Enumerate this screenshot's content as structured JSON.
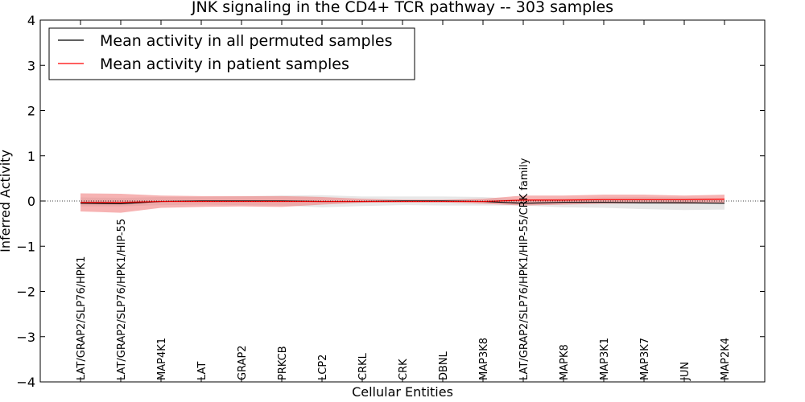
{
  "chart_data": {
    "type": "line",
    "title": "JNK signaling in the CD4+ TCR pathway -- 303 samples",
    "xlabel": "Cellular Entities",
    "ylabel": "Inferred Activity",
    "ylim": [
      -4,
      4
    ],
    "yticks": [
      -4,
      -3,
      -2,
      -1,
      0,
      1,
      2,
      3,
      4
    ],
    "ytick_labels": [
      "−4",
      "−3",
      "−2",
      "−1",
      "0",
      "1",
      "2",
      "3",
      "4"
    ],
    "legend_position": "upper-left",
    "categories": [
      "LAT/GRAP2/SLP76/HPK1",
      "LAT/GRAP2/SLP76/HPK1/HIP-55",
      "MAP4K1",
      "LAT",
      "GRAP2",
      "PRKCB",
      "LCP2",
      "CRKL",
      "CRK",
      "DBNL",
      "MAP3K8",
      "LAT/GRAP2/SLP76/HPK1/HIP-55/CRK family",
      "MAPK8",
      "MAP3K1",
      "MAP3K7",
      "JUN",
      "MAP2K4"
    ],
    "series": [
      {
        "name": "Mean activity in all permuted samples",
        "color": "#000000",
        "band_color": "#bbbbbb",
        "values": [
          -0.05,
          -0.06,
          -0.01,
          0.0,
          0.0,
          0.0,
          -0.01,
          -0.01,
          0.0,
          0.0,
          -0.01,
          -0.05,
          -0.03,
          -0.03,
          -0.04,
          -0.04,
          -0.05
        ],
        "lower": [
          -0.12,
          -0.12,
          -0.09,
          -0.08,
          -0.09,
          -0.1,
          -0.14,
          -0.11,
          -0.09,
          -0.1,
          -0.1,
          -0.1,
          -0.14,
          -0.15,
          -0.18,
          -0.2,
          -0.19
        ],
        "upper": [
          0.08,
          0.07,
          0.09,
          0.09,
          0.1,
          0.12,
          0.13,
          0.1,
          0.1,
          0.1,
          0.09,
          0.03,
          0.06,
          0.08,
          0.09,
          0.08,
          0.05
        ]
      },
      {
        "name": "Mean activity in patient samples",
        "color": "#ff0000",
        "band_color": "#f08080",
        "values": [
          -0.03,
          -0.03,
          -0.01,
          -0.01,
          -0.01,
          -0.01,
          -0.01,
          -0.01,
          -0.01,
          -0.01,
          -0.01,
          0.02,
          0.02,
          0.03,
          0.03,
          0.03,
          0.04
        ],
        "lower": [
          -0.23,
          -0.26,
          -0.15,
          -0.13,
          -0.12,
          -0.13,
          -0.08,
          -0.04,
          -0.03,
          -0.03,
          -0.06,
          -0.1,
          -0.08,
          -0.06,
          -0.05,
          -0.06,
          -0.05
        ],
        "upper": [
          0.17,
          0.16,
          0.12,
          0.11,
          0.11,
          0.11,
          0.09,
          0.05,
          0.03,
          0.03,
          0.05,
          0.12,
          0.12,
          0.14,
          0.14,
          0.12,
          0.14
        ]
      }
    ]
  }
}
